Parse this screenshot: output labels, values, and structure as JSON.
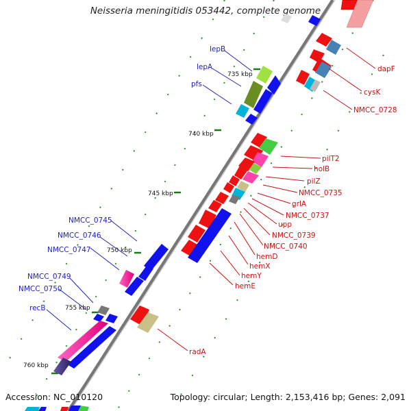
{
  "title": "Neisseria meningitidis 053442, complete genome",
  "footer": {
    "accession": "Accession: NC_010120",
    "topology": "Topology: circular; Length: 2,153,416 bp; Genes: 2,091"
  },
  "ruler_labels": [
    "735 kbp",
    "740 kbp",
    "745 kbp",
    "750 kbp",
    "755 kbp",
    "760 kbp"
  ],
  "genes_left": [
    "lepB",
    "lepA",
    "pfs",
    "NMCC_0745",
    "NMCC_0746",
    "NMCC_0747",
    "NMCC_0749",
    "NMCC_0750",
    "recB"
  ],
  "genes_right": [
    "dapF",
    "cysK",
    "NMCC_0728",
    "pilT2",
    "holB",
    "pilZ",
    "NMCC_0735",
    "grlA",
    "NMCC_0737",
    "upp",
    "NMCC_0739",
    "NMCC_0740",
    "hemD",
    "hemX",
    "hemY",
    "hemE",
    "radA"
  ],
  "colors": {
    "backbone": "#888888",
    "forward_strand": "#1111ee",
    "reverse_strand": "#ee1111",
    "left_label": "#2222bb",
    "right_label": "#cc1111",
    "tick": "#228822"
  }
}
